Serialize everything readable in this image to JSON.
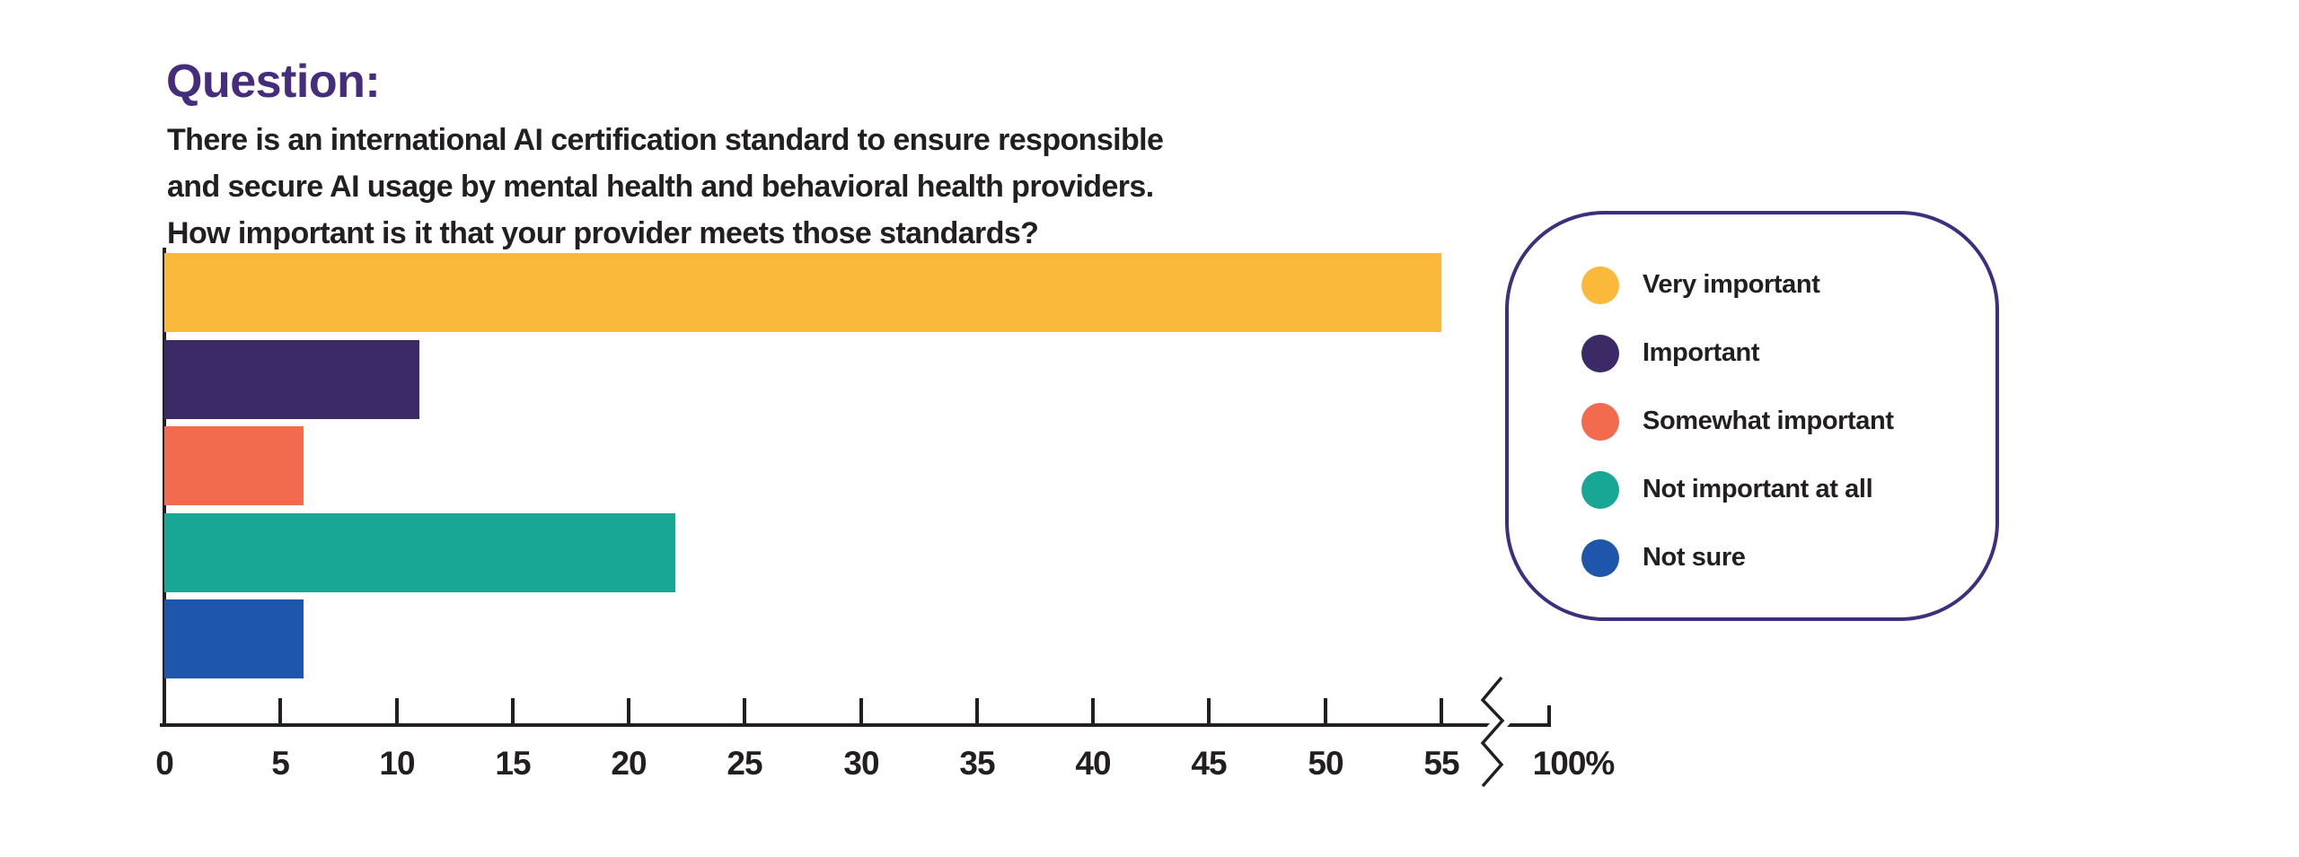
{
  "question": {
    "heading": "Question:",
    "lines": [
      "There is an international AI certification standard to ensure responsible",
      "and secure AI usage by mental health and behavioral health providers.",
      "How important is it that your provider meets those standards?"
    ]
  },
  "chart_data": {
    "type": "bar",
    "orientation": "horizontal",
    "categories": [
      "Very important",
      "Important",
      "Somewhat important",
      "Not important at all",
      "Not sure"
    ],
    "values": [
      55,
      11,
      6,
      22,
      6
    ],
    "value_unit": "percent",
    "title": "",
    "xlabel": "",
    "ylabel": "",
    "x_ticks": [
      0,
      5,
      10,
      15,
      20,
      25,
      30,
      35,
      40,
      45,
      50,
      55
    ],
    "axis_break": true,
    "axis_break_end_label": "100%",
    "xlim": [
      0,
      57
    ],
    "grid": false,
    "legend_position": "right",
    "bar_colors": [
      "#FBB93C",
      "#3B2A66",
      "#F26B4E",
      "#18A795",
      "#1E56AC"
    ]
  },
  "legend": {
    "items": [
      {
        "label": "Very important",
        "color": "#FBB93C"
      },
      {
        "label": "Important",
        "color": "#3B2A66"
      },
      {
        "label": "Somewhat important",
        "color": "#F26B4E"
      },
      {
        "label": "Not important at all",
        "color": "#18A795"
      },
      {
        "label": "Not sure",
        "color": "#1E56AC"
      }
    ]
  },
  "colors": {
    "heading": "#462C7C",
    "body_text": "#231F20",
    "axis": "#231F20",
    "legend_border": "#3F2D7D",
    "background": "#FFFFFF"
  }
}
